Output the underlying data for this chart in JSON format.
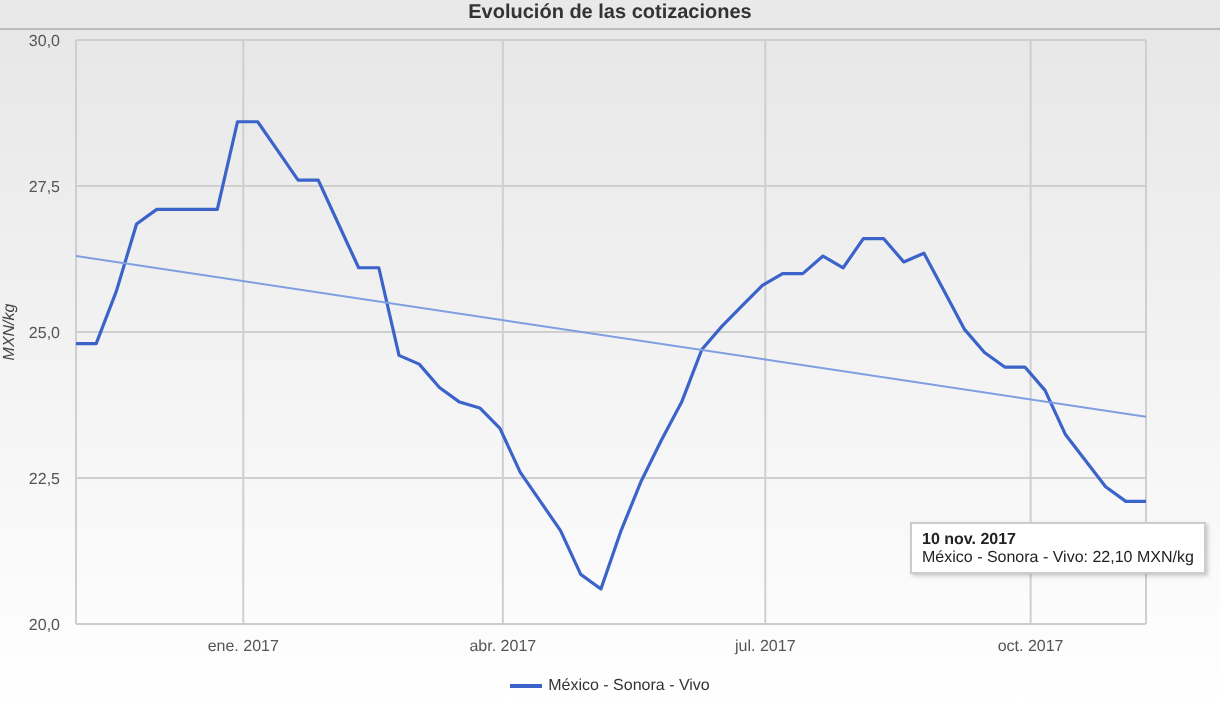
{
  "chart_data": {
    "type": "line",
    "title": "Evolución de las cotizaciones",
    "ylabel": "MXN/kg",
    "x": [
      "2016-11-04",
      "2016-11-11",
      "2016-11-18",
      "2016-11-25",
      "2016-12-02",
      "2016-12-09",
      "2016-12-16",
      "2016-12-23",
      "2016-12-30",
      "2017-01-06",
      "2017-01-13",
      "2017-01-20",
      "2017-01-27",
      "2017-02-03",
      "2017-02-10",
      "2017-02-17",
      "2017-02-24",
      "2017-03-03",
      "2017-03-10",
      "2017-03-17",
      "2017-03-24",
      "2017-03-31",
      "2017-04-07",
      "2017-04-14",
      "2017-04-21",
      "2017-04-28",
      "2017-05-05",
      "2017-05-12",
      "2017-05-19",
      "2017-05-26",
      "2017-06-02",
      "2017-06-09",
      "2017-06-16",
      "2017-06-23",
      "2017-06-30",
      "2017-07-07",
      "2017-07-14",
      "2017-07-21",
      "2017-07-28",
      "2017-08-04",
      "2017-08-11",
      "2017-08-18",
      "2017-08-25",
      "2017-09-01",
      "2017-09-08",
      "2017-09-15",
      "2017-09-22",
      "2017-09-29",
      "2017-10-06",
      "2017-10-13",
      "2017-10-20",
      "2017-10-27",
      "2017-11-03",
      "2017-11-10"
    ],
    "series": [
      {
        "name": "México - Sonora - Vivo",
        "color": "#3b63c9",
        "values": [
          24.8,
          24.8,
          25.7,
          26.85,
          27.1,
          27.1,
          27.1,
          27.1,
          28.6,
          28.6,
          28.1,
          27.6,
          27.6,
          26.85,
          26.1,
          26.1,
          24.6,
          24.45,
          24.05,
          23.8,
          23.7,
          23.35,
          22.6,
          22.1,
          21.6,
          20.85,
          20.6,
          21.6,
          22.45,
          23.15,
          23.8,
          24.7,
          25.1,
          25.45,
          25.8,
          26.0,
          26.0,
          26.3,
          26.1,
          26.6,
          26.6,
          26.2,
          26.35,
          25.7,
          25.05,
          24.65,
          24.4,
          24.4,
          24.0,
          23.25,
          22.8,
          22.35,
          22.1,
          22.1
        ]
      },
      {
        "type": "line",
        "color": "#7d9fe0",
        "x": [
          "2016-11-04",
          "2017-11-10"
        ],
        "values": [
          26.3,
          23.55
        ]
      }
    ],
    "xlim": [
      "2016-11-04",
      "2017-11-10"
    ],
    "xticks": [
      {
        "value": "2017-01-01",
        "label": "ene. 2017"
      },
      {
        "value": "2017-04-01",
        "label": "abr. 2017"
      },
      {
        "value": "2017-07-01",
        "label": "jul. 2017"
      },
      {
        "value": "2017-10-01",
        "label": "oct. 2017"
      }
    ],
    "ylim": [
      20,
      30
    ],
    "yticks": [
      {
        "value": 20,
        "label": "20,0"
      },
      {
        "value": 22.5,
        "label": "22,5"
      },
      {
        "value": 25,
        "label": "25,0"
      },
      {
        "value": 27.5,
        "label": "27,5"
      },
      {
        "value": 30,
        "label": "30,0"
      }
    ],
    "grid": true,
    "legend": "bottom",
    "marker": "none",
    "line_style": "solid",
    "annotations": [
      {
        "text": "10 nov. 2017\nMéxico - Sonora - Vivo: 22,10 MXN/kg",
        "x": "2017-11-10",
        "y": 22.1
      }
    ]
  }
}
